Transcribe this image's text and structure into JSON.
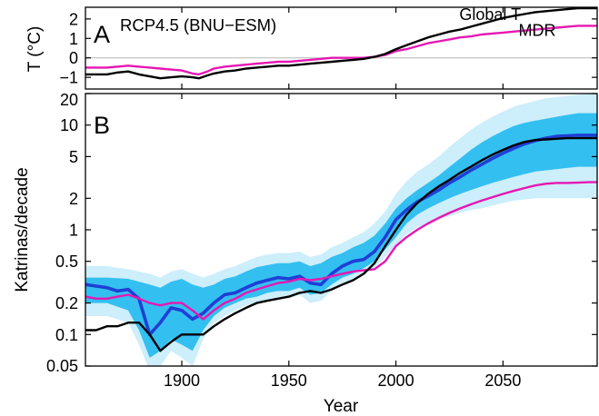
{
  "figure": {
    "x_axis_label": "Year"
  },
  "chart_data": [
    {
      "id": "A",
      "type": "line",
      "panel_letter": "A",
      "title": "RCP4.5 (BNU−ESM)",
      "xlabel": "Year",
      "ylabel": "T (°C)",
      "xlim": [
        1855,
        2094
      ],
      "ylim": [
        -1.6,
        2.6
      ],
      "yticks": [
        -1,
        0,
        1,
        2
      ],
      "reference_line": {
        "y": 0,
        "color": "#b5b5b5"
      },
      "series": [
        {
          "name": "Global T",
          "color": "#000000",
          "label_at": [
            2044,
            1.95
          ],
          "x": [
            1855,
            1865,
            1870,
            1875,
            1880,
            1885,
            1890,
            1895,
            1900,
            1905,
            1908,
            1912,
            1915,
            1920,
            1925,
            1930,
            1935,
            1940,
            1945,
            1950,
            1955,
            1960,
            1965,
            1970,
            1975,
            1980,
            1985,
            1990,
            1995,
            2000,
            2005,
            2010,
            2015,
            2020,
            2025,
            2030,
            2035,
            2040,
            2045,
            2050,
            2055,
            2060,
            2065,
            2070,
            2075,
            2080,
            2085,
            2090,
            2094
          ],
          "values": [
            -0.85,
            -0.85,
            -0.75,
            -0.7,
            -0.85,
            -0.95,
            -1.05,
            -1.0,
            -0.95,
            -1.0,
            -1.05,
            -0.9,
            -0.8,
            -0.7,
            -0.65,
            -0.55,
            -0.5,
            -0.45,
            -0.4,
            -0.4,
            -0.35,
            -0.3,
            -0.25,
            -0.2,
            -0.15,
            -0.1,
            -0.05,
            0.05,
            0.2,
            0.45,
            0.65,
            0.85,
            1.05,
            1.2,
            1.35,
            1.45,
            1.6,
            1.75,
            1.9,
            2.05,
            2.15,
            2.25,
            2.35,
            2.4,
            2.45,
            2.5,
            2.55,
            2.55,
            2.55
          ]
        },
        {
          "name": "MDR",
          "color": "#e617b3",
          "label_at": [
            2066,
            1.12
          ],
          "x": [
            1855,
            1865,
            1870,
            1875,
            1880,
            1885,
            1890,
            1895,
            1900,
            1905,
            1908,
            1912,
            1915,
            1920,
            1925,
            1930,
            1935,
            1940,
            1945,
            1950,
            1955,
            1960,
            1965,
            1970,
            1975,
            1980,
            1985,
            1990,
            1995,
            2000,
            2005,
            2010,
            2015,
            2020,
            2025,
            2030,
            2035,
            2040,
            2045,
            2050,
            2055,
            2060,
            2065,
            2070,
            2075,
            2080,
            2085,
            2090,
            2094
          ],
          "values": [
            -0.5,
            -0.5,
            -0.45,
            -0.4,
            -0.45,
            -0.5,
            -0.55,
            -0.6,
            -0.65,
            -0.8,
            -0.85,
            -0.7,
            -0.55,
            -0.45,
            -0.4,
            -0.35,
            -0.3,
            -0.25,
            -0.2,
            -0.2,
            -0.15,
            -0.1,
            -0.05,
            0.0,
            0.0,
            0.0,
            0.0,
            0.05,
            0.15,
            0.35,
            0.45,
            0.6,
            0.75,
            0.85,
            0.95,
            1.05,
            1.1,
            1.2,
            1.25,
            1.3,
            1.35,
            1.4,
            1.45,
            1.5,
            1.55,
            1.6,
            1.65,
            1.65,
            1.65
          ]
        }
      ]
    },
    {
      "id": "B",
      "type": "line",
      "panel_letter": "B",
      "xlabel": "Year",
      "ylabel": "Katrinas/decade",
      "y_scale": "log",
      "xlim": [
        1855,
        2094
      ],
      "ylim": [
        0.05,
        20
      ],
      "yticks": [
        0.05,
        0.1,
        0.2,
        0.5,
        1,
        2,
        5,
        10,
        20
      ],
      "ytick_labels": [
        "0.05",
        "0.1",
        "0.2",
        "0.5",
        "1",
        "2",
        "5",
        "10",
        "20"
      ],
      "xticks": [
        1900,
        1950,
        2000,
        2050
      ],
      "xtick_labels": [
        "1900",
        "1950",
        "2000",
        "2050"
      ],
      "bands": [
        {
          "color": "#cdeefb",
          "x": [
            1855,
            1865,
            1875,
            1880,
            1885,
            1890,
            1895,
            1900,
            1905,
            1910,
            1915,
            1920,
            1925,
            1930,
            1935,
            1940,
            1945,
            1950,
            1955,
            1960,
            1965,
            1970,
            1975,
            1980,
            1985,
            1990,
            1995,
            2000,
            2005,
            2010,
            2015,
            2020,
            2025,
            2030,
            2035,
            2040,
            2045,
            2050,
            2055,
            2060,
            2065,
            2070,
            2075,
            2080,
            2085,
            2090,
            2094
          ],
          "lower": [
            0.15,
            0.15,
            0.13,
            0.08,
            0.045,
            0.05,
            0.07,
            0.06,
            0.05,
            0.09,
            0.13,
            0.15,
            0.17,
            0.19,
            0.2,
            0.21,
            0.22,
            0.22,
            0.24,
            0.2,
            0.21,
            0.26,
            0.3,
            0.33,
            0.38,
            0.44,
            0.55,
            0.72,
            0.9,
            1.05,
            1.15,
            1.25,
            1.35,
            1.45,
            1.55,
            1.6,
            1.7,
            1.8,
            1.9,
            1.95,
            2.0,
            2.0,
            2.0,
            2.0,
            2.0,
            2.0,
            2.0
          ],
          "upper": [
            0.45,
            0.45,
            0.42,
            0.4,
            0.38,
            0.35,
            0.4,
            0.42,
            0.38,
            0.35,
            0.38,
            0.42,
            0.45,
            0.5,
            0.55,
            0.58,
            0.6,
            0.6,
            0.62,
            0.55,
            0.58,
            0.68,
            0.75,
            0.85,
            0.95,
            1.15,
            1.5,
            2.2,
            2.9,
            3.6,
            4.2,
            5.0,
            6.2,
            7.5,
            9.0,
            10.5,
            12.0,
            13.5,
            15.0,
            16.0,
            17.0,
            18.0,
            18.5,
            19.0,
            19.5,
            19.8,
            20.0
          ]
        },
        {
          "color": "#33bff0",
          "x": [
            1855,
            1865,
            1875,
            1880,
            1885,
            1890,
            1895,
            1900,
            1905,
            1910,
            1915,
            1920,
            1925,
            1930,
            1935,
            1940,
            1945,
            1950,
            1955,
            1960,
            1965,
            1970,
            1975,
            1980,
            1985,
            1990,
            1995,
            2000,
            2005,
            2010,
            2015,
            2020,
            2025,
            2030,
            2035,
            2040,
            2045,
            2050,
            2055,
            2060,
            2065,
            2070,
            2075,
            2080,
            2085,
            2090,
            2094
          ],
          "lower": [
            0.2,
            0.2,
            0.17,
            0.11,
            0.06,
            0.07,
            0.09,
            0.08,
            0.07,
            0.11,
            0.15,
            0.18,
            0.2,
            0.22,
            0.23,
            0.25,
            0.26,
            0.26,
            0.28,
            0.24,
            0.25,
            0.3,
            0.35,
            0.38,
            0.43,
            0.5,
            0.65,
            0.85,
            1.15,
            1.4,
            1.6,
            1.8,
            2.0,
            2.2,
            2.4,
            2.6,
            2.8,
            3.0,
            3.2,
            3.4,
            3.6,
            3.7,
            3.8,
            3.9,
            4.0,
            4.0,
            4.0
          ],
          "upper": [
            0.35,
            0.35,
            0.34,
            0.32,
            0.3,
            0.28,
            0.32,
            0.34,
            0.3,
            0.28,
            0.3,
            0.34,
            0.36,
            0.4,
            0.44,
            0.46,
            0.48,
            0.48,
            0.5,
            0.45,
            0.48,
            0.55,
            0.6,
            0.68,
            0.75,
            0.88,
            1.15,
            1.6,
            2.0,
            2.4,
            2.8,
            3.3,
            4.0,
            4.8,
            5.8,
            6.8,
            7.8,
            8.8,
            9.8,
            10.5,
            11.0,
            11.5,
            12.0,
            12.5,
            13.0,
            13.0,
            13.0
          ]
        }
      ],
      "series": [
        {
          "color": "#1f3fd6",
          "x": [
            1855,
            1860,
            1865,
            1870,
            1875,
            1880,
            1885,
            1890,
            1895,
            1900,
            1905,
            1910,
            1915,
            1920,
            1925,
            1930,
            1935,
            1940,
            1945,
            1950,
            1955,
            1960,
            1965,
            1970,
            1975,
            1980,
            1985,
            1990,
            1995,
            2000,
            2005,
            2010,
            2015,
            2020,
            2025,
            2030,
            2035,
            2040,
            2045,
            2050,
            2055,
            2060,
            2065,
            2070,
            2075,
            2080,
            2085,
            2090,
            2094
          ],
          "values": [
            0.3,
            0.29,
            0.28,
            0.26,
            0.27,
            0.22,
            0.1,
            0.13,
            0.18,
            0.17,
            0.14,
            0.16,
            0.2,
            0.24,
            0.25,
            0.28,
            0.31,
            0.33,
            0.35,
            0.34,
            0.36,
            0.31,
            0.3,
            0.38,
            0.45,
            0.5,
            0.52,
            0.62,
            0.85,
            1.25,
            1.55,
            1.85,
            2.1,
            2.4,
            2.8,
            3.2,
            3.7,
            4.2,
            4.8,
            5.4,
            6.0,
            6.6,
            7.1,
            7.5,
            7.8,
            7.9,
            8.0,
            8.0,
            8.0
          ]
        },
        {
          "name": "MDR",
          "color": "#e617b3",
          "x": [
            1855,
            1860,
            1865,
            1870,
            1875,
            1880,
            1885,
            1890,
            1895,
            1900,
            1905,
            1910,
            1915,
            1920,
            1925,
            1930,
            1935,
            1940,
            1945,
            1950,
            1955,
            1960,
            1965,
            1970,
            1975,
            1980,
            1985,
            1990,
            1995,
            2000,
            2005,
            2010,
            2015,
            2020,
            2025,
            2030,
            2035,
            2040,
            2045,
            2050,
            2055,
            2060,
            2065,
            2070,
            2075,
            2080,
            2085,
            2090,
            2094
          ],
          "values": [
            0.23,
            0.22,
            0.22,
            0.23,
            0.24,
            0.22,
            0.2,
            0.19,
            0.2,
            0.2,
            0.17,
            0.14,
            0.17,
            0.2,
            0.22,
            0.25,
            0.27,
            0.29,
            0.31,
            0.32,
            0.34,
            0.33,
            0.34,
            0.36,
            0.38,
            0.4,
            0.41,
            0.42,
            0.5,
            0.7,
            0.85,
            1.0,
            1.15,
            1.3,
            1.45,
            1.6,
            1.75,
            1.9,
            2.05,
            2.2,
            2.35,
            2.5,
            2.65,
            2.75,
            2.8,
            2.8,
            2.82,
            2.85,
            2.85
          ]
        },
        {
          "name": "Global T",
          "color": "#000000",
          "x": [
            1855,
            1860,
            1865,
            1870,
            1875,
            1880,
            1885,
            1890,
            1895,
            1900,
            1905,
            1910,
            1915,
            1920,
            1925,
            1930,
            1935,
            1940,
            1945,
            1950,
            1955,
            1960,
            1965,
            1970,
            1975,
            1980,
            1985,
            1990,
            1995,
            2000,
            2005,
            2010,
            2015,
            2020,
            2025,
            2030,
            2035,
            2040,
            2045,
            2050,
            2055,
            2060,
            2065,
            2070,
            2075,
            2080,
            2085,
            2090,
            2094
          ],
          "values": [
            0.11,
            0.11,
            0.12,
            0.12,
            0.13,
            0.13,
            0.1,
            0.07,
            0.085,
            0.1,
            0.1,
            0.1,
            0.12,
            0.14,
            0.16,
            0.18,
            0.2,
            0.21,
            0.22,
            0.23,
            0.25,
            0.26,
            0.25,
            0.27,
            0.3,
            0.33,
            0.38,
            0.48,
            0.7,
            1.0,
            1.4,
            1.8,
            2.2,
            2.6,
            3.0,
            3.5,
            4.0,
            4.6,
            5.2,
            5.8,
            6.4,
            6.9,
            7.2,
            7.3,
            7.4,
            7.5,
            7.5,
            7.5,
            7.5
          ]
        }
      ]
    }
  ]
}
